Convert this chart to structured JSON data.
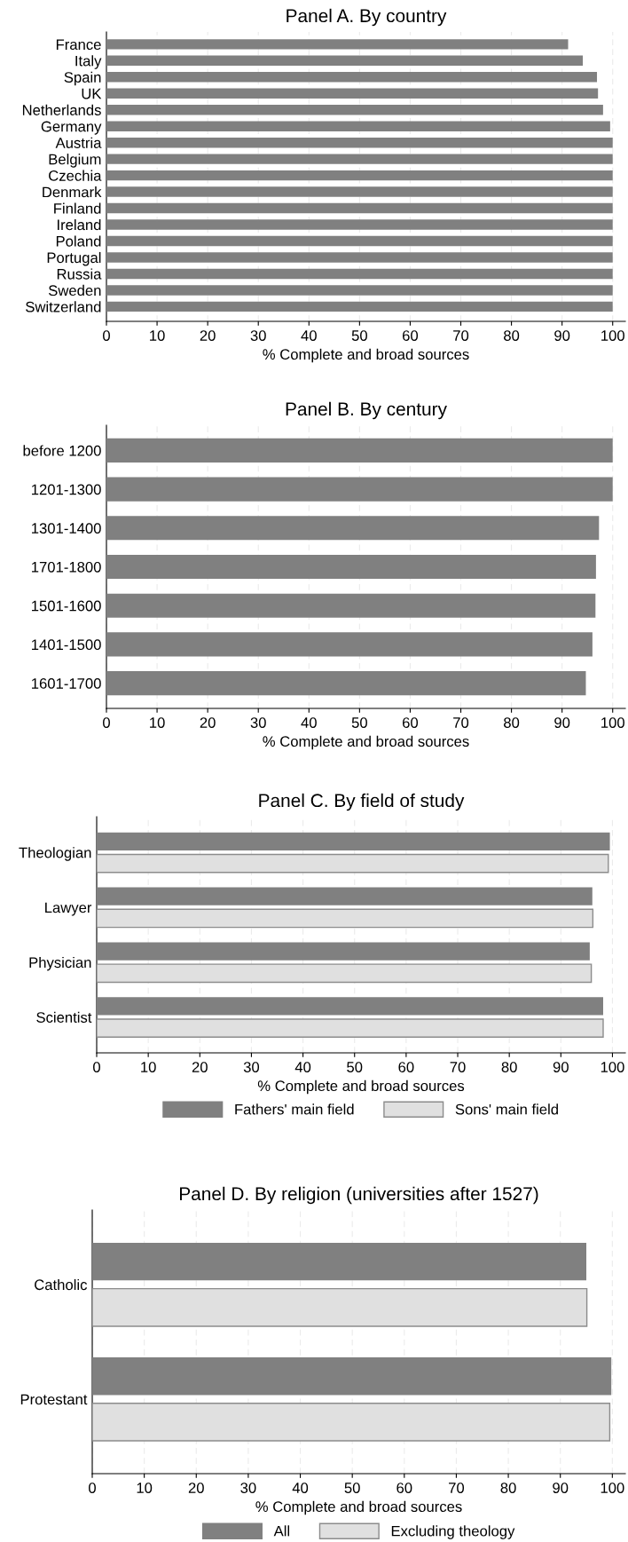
{
  "chart_data": [
    {
      "type": "bar",
      "orientation": "horizontal",
      "title": "Panel A. By country",
      "xlabel": "% Complete and broad sources",
      "categories": [
        "France",
        "Italy",
        "Spain",
        "UK",
        "Netherlands",
        "Germany",
        "Austria",
        "Belgium",
        "Czechia",
        "Denmark",
        "Finland",
        "Ireland",
        "Poland",
        "Portugal",
        "Russia",
        "Sweden",
        "Switzerland"
      ],
      "series": [
        {
          "color": "#808080",
          "values": [
            91.2,
            94.1,
            96.9,
            97.1,
            98.1,
            99.5,
            100,
            100,
            100,
            100,
            100,
            100,
            100,
            100,
            100,
            100,
            100
          ]
        }
      ],
      "xlim": [
        0,
        102.5
      ],
      "xticks": [
        0,
        10,
        20,
        30,
        40,
        50,
        60,
        70,
        80,
        90,
        100
      ],
      "grid": "x",
      "legend": false
    },
    {
      "type": "bar",
      "orientation": "horizontal",
      "title": "Panel B. By century",
      "xlabel": "% Complete and broad sources",
      "categories": [
        "before 1200",
        "1201-1300",
        "1301-1400",
        "1701-1800",
        "1501-1600",
        "1401-1500",
        "1601-1700"
      ],
      "series": [
        {
          "color": "#808080",
          "values": [
            100,
            100,
            97.3,
            96.7,
            96.6,
            96.0,
            94.7
          ]
        }
      ],
      "xlim": [
        0,
        102.5
      ],
      "xticks": [
        0,
        10,
        20,
        30,
        40,
        50,
        60,
        70,
        80,
        90,
        100
      ],
      "grid": "x",
      "legend": false
    },
    {
      "type": "bar",
      "orientation": "horizontal",
      "title": "Panel C. By field of study",
      "xlabel": "% Complete and broad sources",
      "categories": [
        "Theologian",
        "Lawyer",
        "Physician",
        "Scientist"
      ],
      "series": [
        {
          "name": "Fathers' main field",
          "color": "#808080",
          "values": [
            99.5,
            96.1,
            95.6,
            98.2
          ]
        },
        {
          "name": "Sons' main field",
          "color": "#e0e0e0",
          "values": [
            99.2,
            96.2,
            95.9,
            98.2
          ]
        }
      ],
      "xlim": [
        0,
        102.5
      ],
      "xticks": [
        0,
        10,
        20,
        30,
        40,
        50,
        60,
        70,
        80,
        90,
        100
      ],
      "grid": "x",
      "legend": "bottom"
    },
    {
      "type": "bar",
      "orientation": "horizontal",
      "title": "Panel D. By religion (universities after 1527)",
      "xlabel": "% Complete and broad sources",
      "categories": [
        "Catholic",
        "Protestant"
      ],
      "series": [
        {
          "name": "All",
          "color": "#808080",
          "values": [
            95.0,
            99.8
          ]
        },
        {
          "name": "Excluding theology",
          "color": "#e0e0e0",
          "values": [
            95.1,
            99.5
          ]
        }
      ],
      "xlim": [
        0,
        102.5
      ],
      "xticks": [
        0,
        10,
        20,
        30,
        40,
        50,
        60,
        70,
        80,
        90,
        100
      ],
      "grid": "x",
      "legend": "bottom"
    }
  ]
}
